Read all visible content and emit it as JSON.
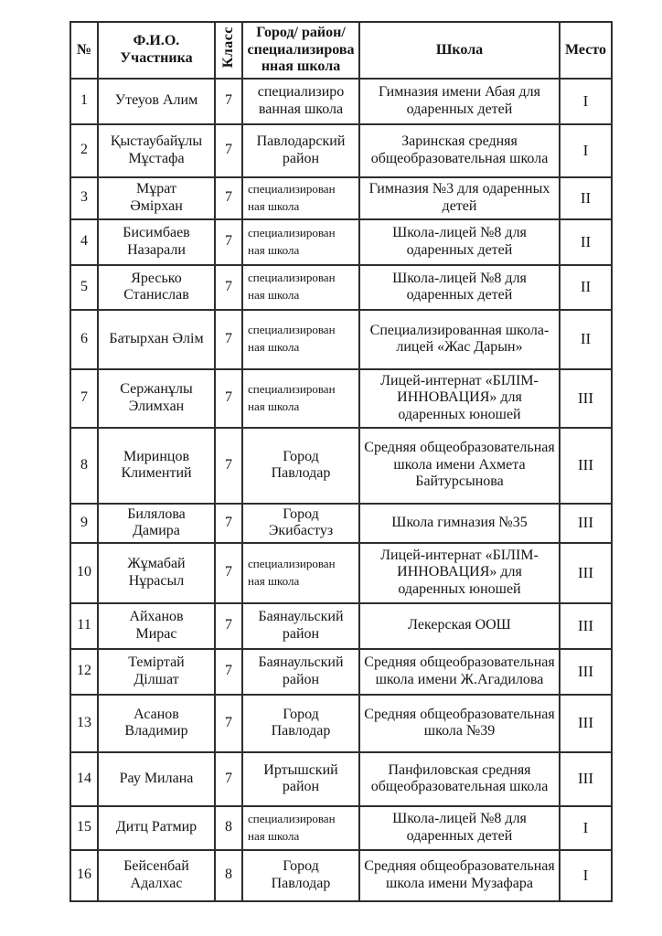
{
  "document": {
    "background": "#ffffff",
    "text_color": "#151515",
    "border_color": "#2e2e2e"
  },
  "table": {
    "headers": {
      "num": "№",
      "name": "Ф.И.О.\nУчастника",
      "grade": "Класс",
      "location": "Город/ район/\nспециализирова\nнная школа",
      "school": "Школа",
      "place": "Место"
    },
    "rows": [
      {
        "num": "1",
        "name": "Утеуов Алим",
        "grade": "7",
        "location": "специализиро\nванная школа",
        "location_small": false,
        "school": "Гимназия имени Абая для одаренных детей",
        "place": "I"
      },
      {
        "num": "2",
        "name": "Қыстаубайұлы\nМұстафа",
        "grade": "7",
        "location": "Павлодарский\nрайон",
        "location_small": false,
        "school": "Заринская средняя общеобразовательная школа",
        "place": "I"
      },
      {
        "num": "3",
        "name": "Мұрат\nӘмірхан",
        "grade": "7",
        "location": "специализирован\nная школа",
        "location_small": true,
        "school": "Гимназия №3 для одаренных детей",
        "place": "II"
      },
      {
        "num": "4",
        "name": "Бисимбаев\nНазарали",
        "grade": "7",
        "location": "специализирован\nная школа",
        "location_small": true,
        "school": "Школа-лицей №8 для одаренных детей",
        "place": "II"
      },
      {
        "num": "5",
        "name": "Яресько\nСтанислав",
        "grade": "7",
        "location": "специализирован\nная школа",
        "location_small": true,
        "school": "Школа-лицей №8 для одаренных детей",
        "place": "II"
      },
      {
        "num": "6",
        "name": "Батырхан Әлім",
        "grade": "7",
        "location": "специализирован\nная школа",
        "location_small": true,
        "school": "Специализированная школа-лицей «Жас Дарын»",
        "place": "II"
      },
      {
        "num": "7",
        "name": "Сержанұлы\nЭлимхан",
        "grade": "7",
        "location": "специализирован\nная школа",
        "location_small": true,
        "school": "Лицей-интернат «БІЛІМ-ИННОВАЦИЯ» для одаренных юношей",
        "place": "III"
      },
      {
        "num": "8",
        "name": "Миринцов\nКлиментий",
        "grade": "7",
        "location": "Город\nПавлодар",
        "location_small": false,
        "school": "Средняя общеобразовательная школа имени Ахмета Байтурсынова",
        "place": "III"
      },
      {
        "num": "9",
        "name": "Билялова\nДамира",
        "grade": "7",
        "location": "Город\nЭкибастуз",
        "location_small": false,
        "school": "Школа гимназия №35",
        "place": "III"
      },
      {
        "num": "10",
        "name": "Жұмабай\nНұрасыл",
        "grade": "7",
        "location": "специализирован\nная школа",
        "location_small": true,
        "school": "Лицей-интернат «БІЛІМ-ИННОВАЦИЯ» для одаренных юношей",
        "place": "III"
      },
      {
        "num": "11",
        "name": "Айханов\nМирас",
        "grade": "7",
        "location": "Баянаульский\nрайон",
        "location_small": false,
        "school": "Лекерская ООШ",
        "place": "III"
      },
      {
        "num": "12",
        "name": "Теміртай\nДілшат",
        "grade": "7",
        "location": "Баянаульский\nрайон",
        "location_small": false,
        "school": "Средняя общеобразовательная школа имени Ж.Агадилова",
        "place": "III"
      },
      {
        "num": "13",
        "name": "Асанов\nВладимир",
        "grade": "7",
        "location": "Город\nПавлодар",
        "location_small": false,
        "school": "Средняя общеобразовательная школа №39",
        "place": "III"
      },
      {
        "num": "14",
        "name": "Рау Милана",
        "grade": "7",
        "location": "Иртышский\nрайон",
        "location_small": false,
        "school": "Панфиловская средняя общеобразовательная школа",
        "place": "III"
      },
      {
        "num": "15",
        "name": "Дитц Ратмир",
        "grade": "8",
        "location": "специализирован\nная школа",
        "location_small": true,
        "school": "Школа-лицей №8 для одаренных детей",
        "place": "I"
      },
      {
        "num": "16",
        "name": "Бейсенбай\nАдалхас",
        "grade": "8",
        "location": "Город\nПавлодар",
        "location_small": false,
        "school": "Средняя общеобразовательная школа имени Музафара",
        "place": "I"
      }
    ]
  }
}
